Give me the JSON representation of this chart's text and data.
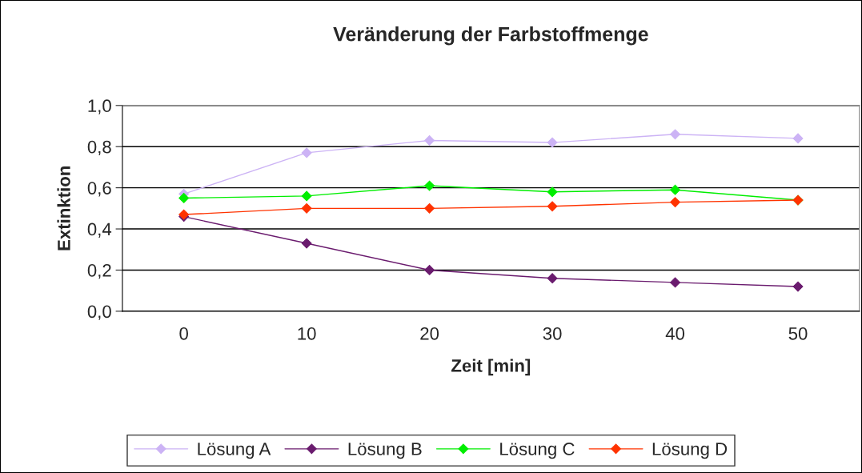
{
  "chart_data": {
    "type": "line",
    "title": "Veränderung der Farbstoffmenge",
    "xlabel": "Zeit [min]",
    "ylabel": "Extinktion",
    "categories": [
      "0",
      "10",
      "20",
      "30",
      "40",
      "50"
    ],
    "series": [
      {
        "name": "Lösung A",
        "color": "#ccb3f5",
        "values": [
          0.57,
          0.77,
          0.83,
          0.82,
          0.86,
          0.84
        ]
      },
      {
        "name": "Lösung B",
        "color": "#6a1b6e",
        "values": [
          0.46,
          0.33,
          0.2,
          0.16,
          0.14,
          0.12
        ]
      },
      {
        "name": "Lösung C",
        "color": "#00ee00",
        "values": [
          0.55,
          0.56,
          0.61,
          0.58,
          0.59,
          0.54
        ]
      },
      {
        "name": "Lösung D",
        "color": "#ff3300",
        "values": [
          0.47,
          0.5,
          0.5,
          0.51,
          0.53,
          0.54
        ]
      }
    ],
    "ylim": [
      0,
      1
    ],
    "yticks": [
      {
        "value": 0,
        "label": "0,0"
      },
      {
        "value": 0.2,
        "label": "0,2"
      },
      {
        "value": 0.4,
        "label": "0,4"
      },
      {
        "value": 0.6,
        "label": "0,6"
      },
      {
        "value": 0.8,
        "label": "0,8"
      },
      {
        "value": 1,
        "label": "1,0"
      }
    ],
    "grid": "y",
    "legend": "bottom",
    "marker": "diamond",
    "line_style": "solid"
  }
}
